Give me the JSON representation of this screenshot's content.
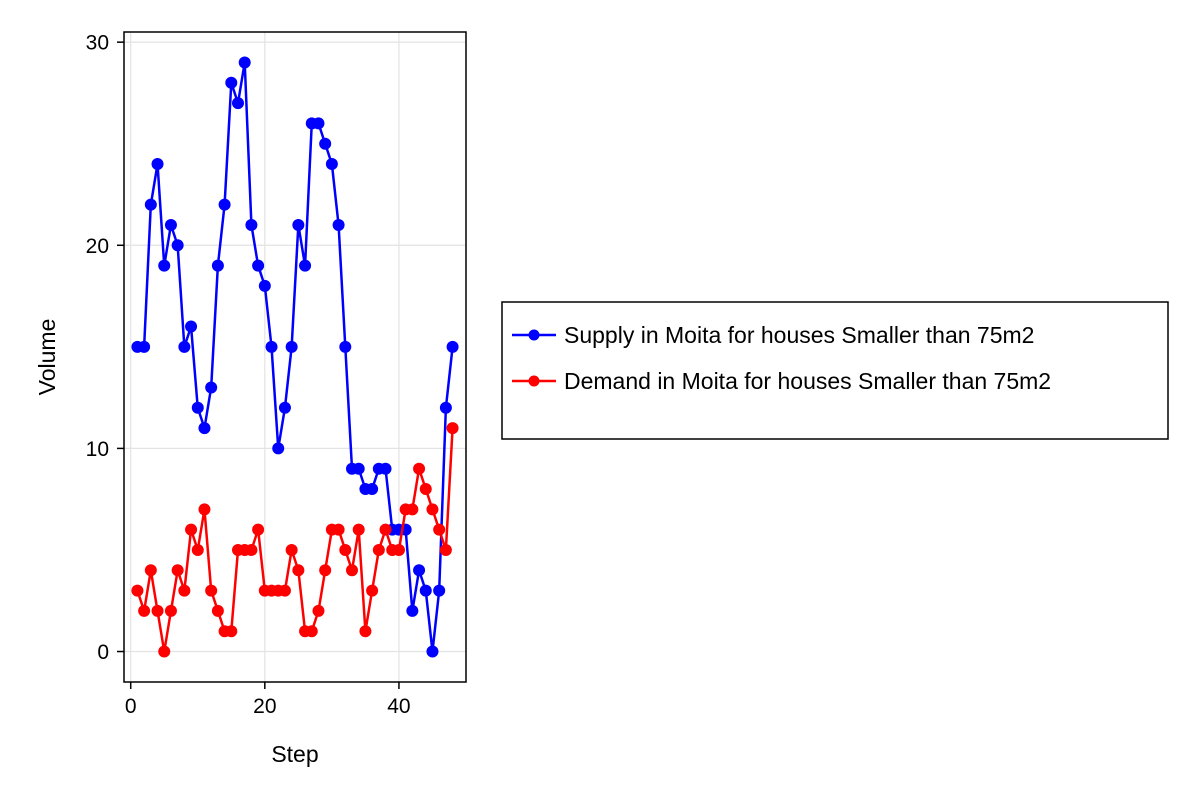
{
  "chart_data": {
    "type": "line",
    "title": "",
    "xlabel": "Step",
    "ylabel": "Volume",
    "xlim": [
      -1,
      50
    ],
    "ylim": [
      -1.5,
      30.5
    ],
    "xticks": [
      0,
      20,
      40
    ],
    "yticks": [
      0,
      10,
      20,
      30
    ],
    "grid": true,
    "legend_position": "right",
    "x": [
      1,
      2,
      3,
      4,
      5,
      6,
      7,
      8,
      9,
      10,
      11,
      12,
      13,
      14,
      15,
      16,
      17,
      18,
      19,
      20,
      21,
      22,
      23,
      24,
      25,
      26,
      27,
      28,
      29,
      30,
      31,
      32,
      33,
      34,
      35,
      36,
      37,
      38,
      39,
      40,
      41,
      42,
      43,
      44,
      45,
      46,
      47,
      48
    ],
    "series": [
      {
        "name": "Supply in Moita for houses Smaller than 75m2",
        "color": "#0000ff",
        "values": [
          15,
          15,
          22,
          24,
          19,
          21,
          20,
          15,
          16,
          12,
          11,
          13,
          19,
          22,
          28,
          27,
          29,
          21,
          19,
          18,
          15,
          10,
          12,
          15,
          21,
          19,
          26,
          26,
          25,
          24,
          21,
          15,
          9,
          9,
          8,
          8,
          9,
          9,
          6,
          6,
          6,
          2,
          4,
          3,
          0,
          3,
          12,
          15
        ]
      },
      {
        "name": "Demand in Moita for houses Smaller than 75m2",
        "color": "#ff0000",
        "values": [
          3,
          2,
          4,
          2,
          0,
          2,
          4,
          3,
          6,
          5,
          7,
          3,
          2,
          1,
          1,
          5,
          5,
          5,
          6,
          3,
          3,
          3,
          3,
          5,
          4,
          1,
          1,
          2,
          4,
          6,
          6,
          5,
          4,
          6,
          1,
          3,
          5,
          6,
          5,
          5,
          7,
          7,
          9,
          8,
          7,
          6,
          5,
          11
        ]
      }
    ]
  }
}
